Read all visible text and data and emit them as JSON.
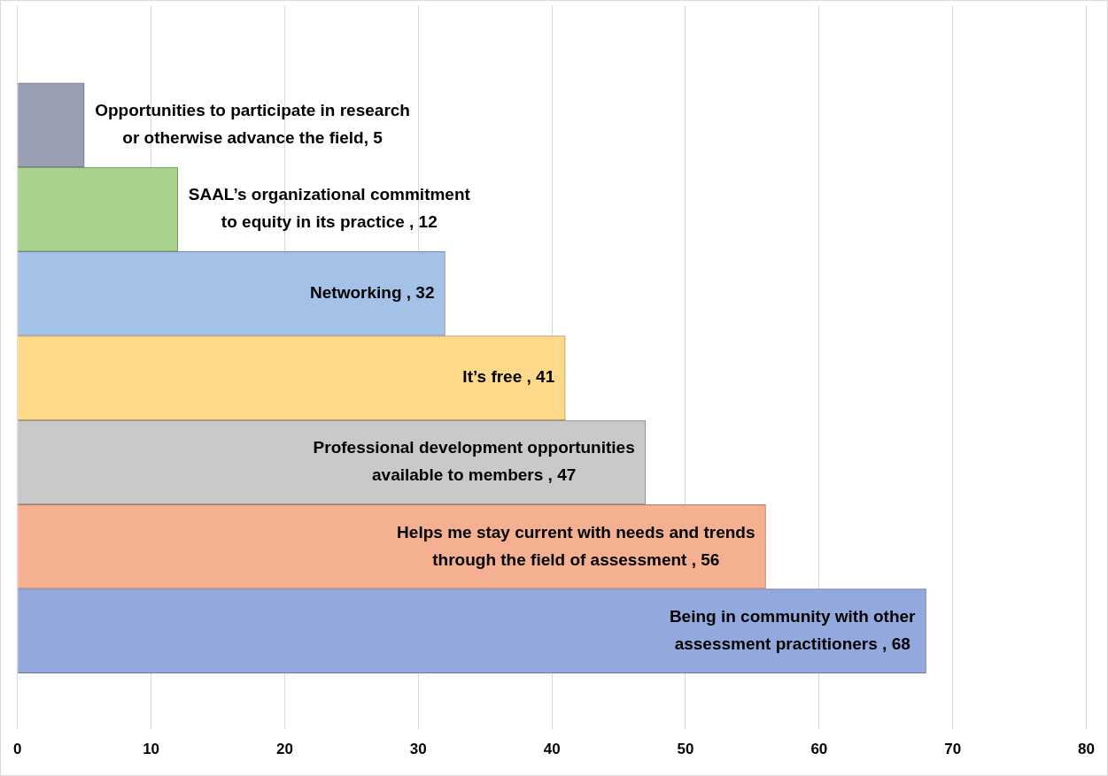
{
  "chart_data": {
    "type": "bar",
    "orientation": "horizontal",
    "categories": [
      null,
      null,
      null,
      null,
      null,
      null,
      null
    ],
    "values": [
      5,
      12,
      32,
      41,
      47,
      56,
      68
    ],
    "colors": [
      "#9aa0b4",
      "#a9d18e",
      "#a4c2e8",
      "#ffd98a",
      "#c9c9c9",
      "#f4b090",
      "#93a8dc"
    ],
    "value_labels": [
      "Opportunities to participate in research\nor otherwise advance the field, 5",
      "SAAL’s organizational commitment\nto equity in its practice , 12",
      "Networking , 32",
      "It’s free , 41",
      "Professional development opportunities\navailable to members , 47",
      "Helps me stay current with needs and trends\nthrough the field of assessment , 56",
      "Being in community with other\nassessment practitioners , 68"
    ],
    "xlim": [
      0,
      80
    ],
    "xticks": [
      0,
      10,
      20,
      30,
      40,
      50,
      60,
      70,
      80
    ],
    "grid": "x",
    "tick_labels": "x",
    "legend": false
  }
}
